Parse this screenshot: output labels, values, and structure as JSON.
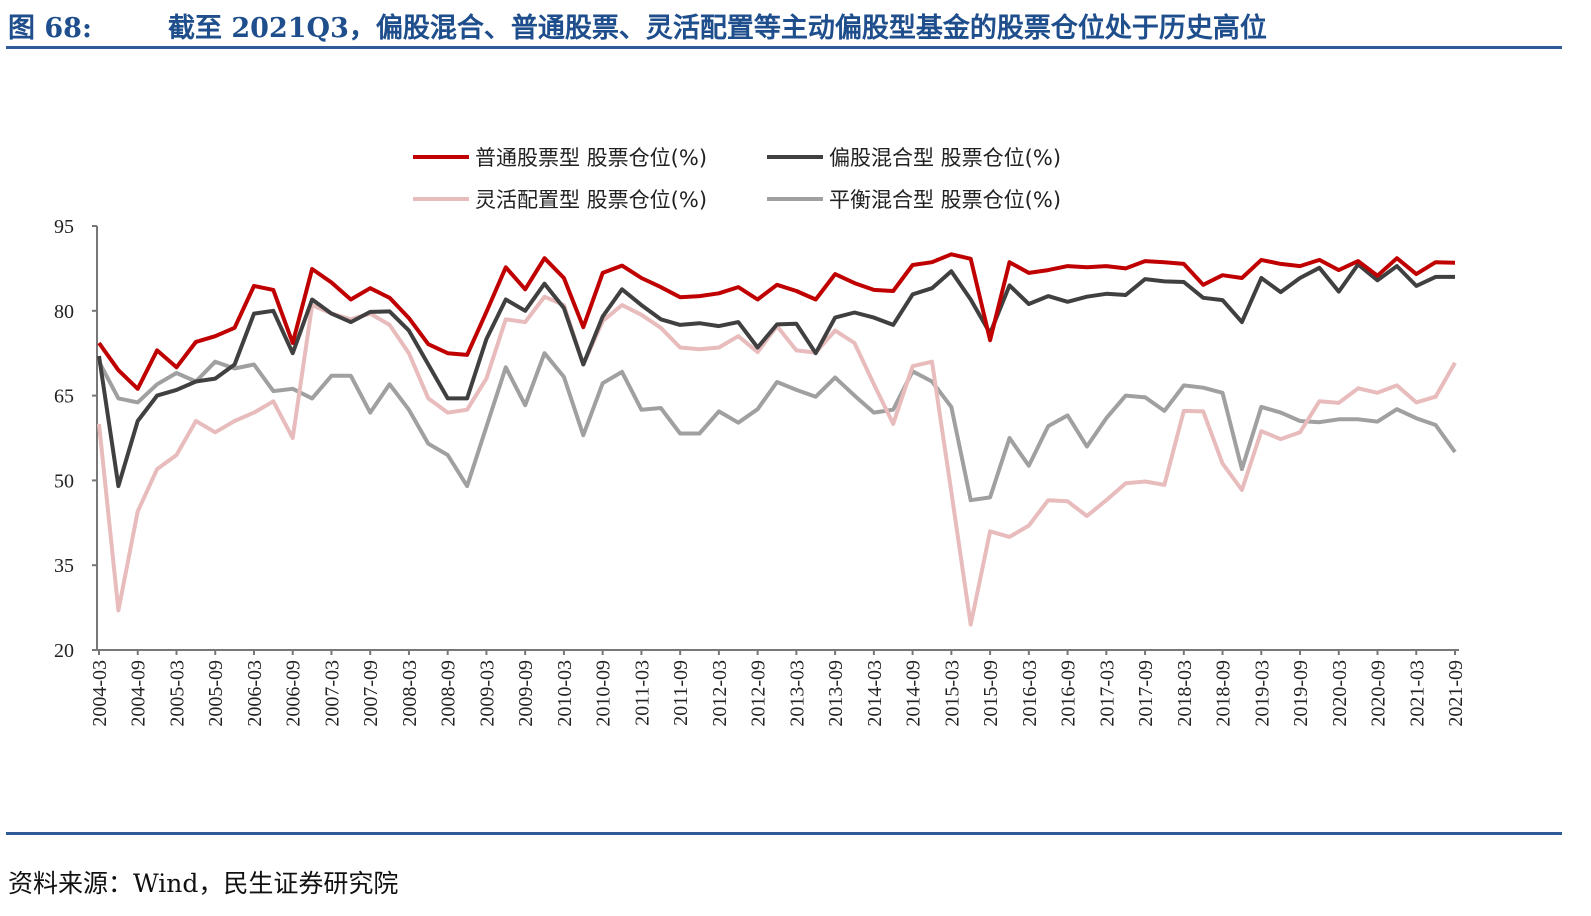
{
  "header": {
    "figure_number": "图 68:",
    "title": "截至 2021Q3，偏股混合、普通股票、灵活配置等主动偏股型基金的股票仓位处于历史高位"
  },
  "footer": {
    "source": "资料来源：Wind，民生证券研究院"
  },
  "chart_data": {
    "type": "line",
    "title": "截至 2021Q3，偏股混合、普通股票、灵活配置等主动偏股型基金的股票仓位处于历史高位",
    "xlabel": "",
    "ylabel": "",
    "ylim": [
      20,
      95
    ],
    "yticks": [
      95,
      80,
      65,
      50,
      35,
      20
    ],
    "x_start": "2004-03",
    "x_frequency": "quarterly",
    "x_tick_labels": [
      "2004-03",
      "2004-09",
      "2005-03",
      "2005-09",
      "2006-03",
      "2006-09",
      "2007-03",
      "2007-09",
      "2008-03",
      "2008-09",
      "2009-03",
      "2009-09",
      "2010-03",
      "2010-09",
      "2011-03",
      "2011-09",
      "2012-03",
      "2012-09",
      "2013-03",
      "2013-09",
      "2014-03",
      "2014-09",
      "2015-03",
      "2015-09",
      "2016-03",
      "2016-09",
      "2017-03",
      "2017-09",
      "2018-03",
      "2018-09",
      "2019-03",
      "2019-09",
      "2020-03",
      "2020-09",
      "2021-03",
      "2021-09"
    ],
    "legend_position": "top-center",
    "grid": false,
    "series": [
      {
        "name": "普通股票型 股票仓位(%)",
        "color": "#c00000",
        "values": [
          74.3,
          69.5,
          66.2,
          73,
          70,
          74.5,
          75.5,
          77,
          84.4,
          83.7,
          74.3,
          87.4,
          85,
          82,
          84,
          82.3,
          78.7,
          74.1,
          72.5,
          72.2,
          79.8,
          87.7,
          83.8,
          89.3,
          85.8,
          77.1,
          86.7,
          88,
          85.8,
          84.2,
          82.4,
          82.6,
          83.1,
          84.2,
          82,
          84.6,
          83.5,
          82,
          86.5,
          84.9,
          83.7,
          83.5,
          88.1,
          88.6,
          90,
          89.2,
          74.8,
          88.6,
          86.7,
          87.2,
          87.9,
          87.7,
          87.9,
          87.5,
          88.8,
          88.6,
          88.3,
          84.6,
          86.3,
          85.8,
          89,
          88.3,
          87.9,
          89,
          87.2,
          88.8,
          86.2,
          89.3,
          86.5,
          88.6,
          88.5
        ]
      },
      {
        "name": "偏股混合型 股票仓位(%)",
        "color": "#404040",
        "values": [
          72,
          49,
          60.5,
          65,
          66,
          67.5,
          68,
          70.5,
          79.5,
          80,
          72.5,
          82,
          79.5,
          78,
          79.8,
          79.9,
          76.5,
          70.5,
          64.5,
          64.5,
          75,
          82,
          80,
          84.8,
          80.5,
          70.5,
          79,
          83.8,
          81,
          78.5,
          77.5,
          77.8,
          77.3,
          78,
          73.5,
          77.6,
          77.7,
          72.5,
          78.8,
          79.7,
          78.8,
          77.5,
          82.9,
          84,
          87,
          82,
          76,
          84.5,
          81.2,
          82.6,
          81.6,
          82.5,
          83,
          82.8,
          85.6,
          85.2,
          85.1,
          82.3,
          81.9,
          78,
          85.8,
          83.3,
          85.8,
          87.6,
          83.4,
          88.2,
          85.4,
          87.9,
          84.4,
          86,
          86
        ]
      },
      {
        "name": "灵活配置型 股票仓位(%)",
        "color": "#e8bcbc",
        "values": [
          60,
          27,
          44.5,
          52,
          54.5,
          60.5,
          58.5,
          60.5,
          62,
          64,
          57.5,
          81,
          79.5,
          78.5,
          79.5,
          77.5,
          72.5,
          64.5,
          62,
          62.5,
          68,
          78.5,
          78,
          82.5,
          81,
          70.5,
          78.2,
          81,
          79.3,
          77,
          73.5,
          73.2,
          73.5,
          75.5,
          72.7,
          77.3,
          73,
          72.6,
          76.5,
          74.3,
          67,
          60,
          70.2,
          71,
          48,
          24.5,
          41,
          40,
          42,
          46.5,
          46.3,
          43.7,
          46.5,
          49.5,
          49.8,
          49.2,
          62.3,
          62.2,
          53,
          48.3,
          58.7,
          57.3,
          58.5,
          64,
          63.7,
          66.3,
          65.5,
          66.8,
          63.8,
          64.8,
          70.8
        ]
      },
      {
        "name": "平衡混合型 股票仓位(%)",
        "color": "#a0a0a0",
        "values": [
          71,
          64.5,
          63.8,
          67,
          69,
          67.5,
          71,
          69.8,
          70.5,
          65.8,
          66.2,
          64.5,
          68.5,
          68.5,
          62,
          67,
          62.5,
          56.5,
          54.5,
          49,
          59.5,
          70,
          63.3,
          72.5,
          68.3,
          58,
          67.2,
          69.2,
          62.5,
          62.8,
          58.3,
          58.3,
          62.2,
          60.2,
          62.6,
          67.4,
          66,
          64.8,
          68.2,
          65,
          62,
          62.5,
          69.3,
          67.5,
          63,
          46.5,
          47,
          57.5,
          52.6,
          59.6,
          61.5,
          56,
          61,
          65,
          64.7,
          62.3,
          66.8,
          66.4,
          65.5,
          52,
          63,
          62,
          60.5,
          60.3,
          60.8,
          60.8,
          60.4,
          62.6,
          61,
          59.8,
          55
        ]
      }
    ]
  }
}
